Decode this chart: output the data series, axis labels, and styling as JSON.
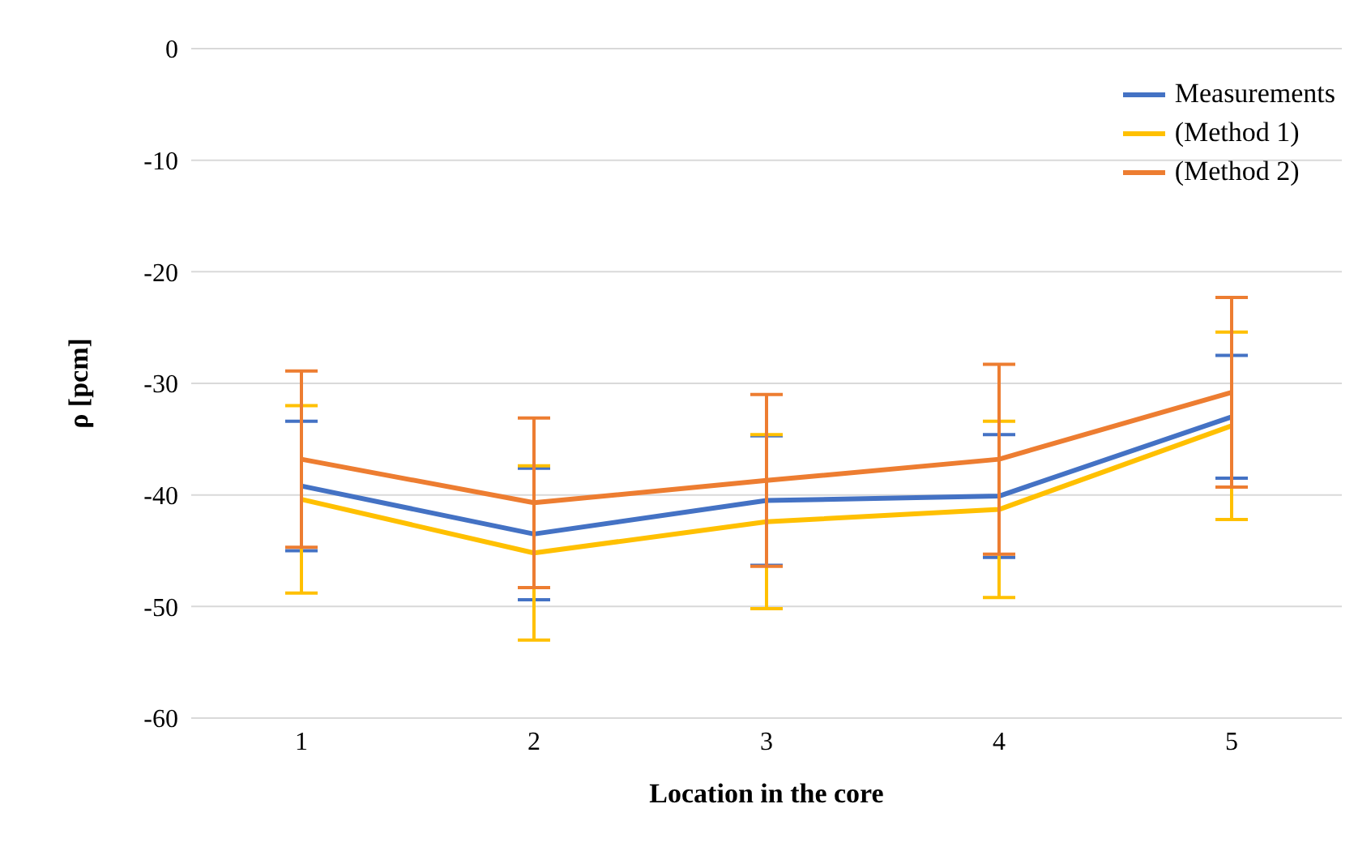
{
  "chart_data": {
    "type": "line",
    "xlabel": "Location in the core",
    "ylabel": "ρ [pcm]",
    "categories": [
      "1",
      "2",
      "3",
      "4",
      "5"
    ],
    "series": [
      {
        "name": "Measurements",
        "color": "#4472c4",
        "values": [
          -39.2,
          -43.5,
          -40.5,
          -40.1,
          -33.0
        ],
        "errors": [
          5.8,
          5.9,
          5.8,
          5.5,
          5.5
        ]
      },
      {
        "name": "(Method 1)",
        "color": "#ffc000",
        "values": [
          -40.4,
          -45.2,
          -42.4,
          -41.3,
          -33.8
        ],
        "errors": [
          8.4,
          7.8,
          7.8,
          7.9,
          8.4
        ]
      },
      {
        "name": "(Method 2)",
        "color": "#ed7d31",
        "values": [
          -36.8,
          -40.7,
          -38.7,
          -36.8,
          -30.8
        ],
        "errors": [
          7.9,
          7.6,
          7.7,
          8.5,
          8.5
        ]
      }
    ],
    "ylim": [
      -60,
      0
    ],
    "yticks": [
      -60,
      -50,
      -40,
      -30,
      -20,
      -10,
      0
    ],
    "grid": "y",
    "legend": "top right",
    "marker": "none",
    "line_style": "solid"
  }
}
